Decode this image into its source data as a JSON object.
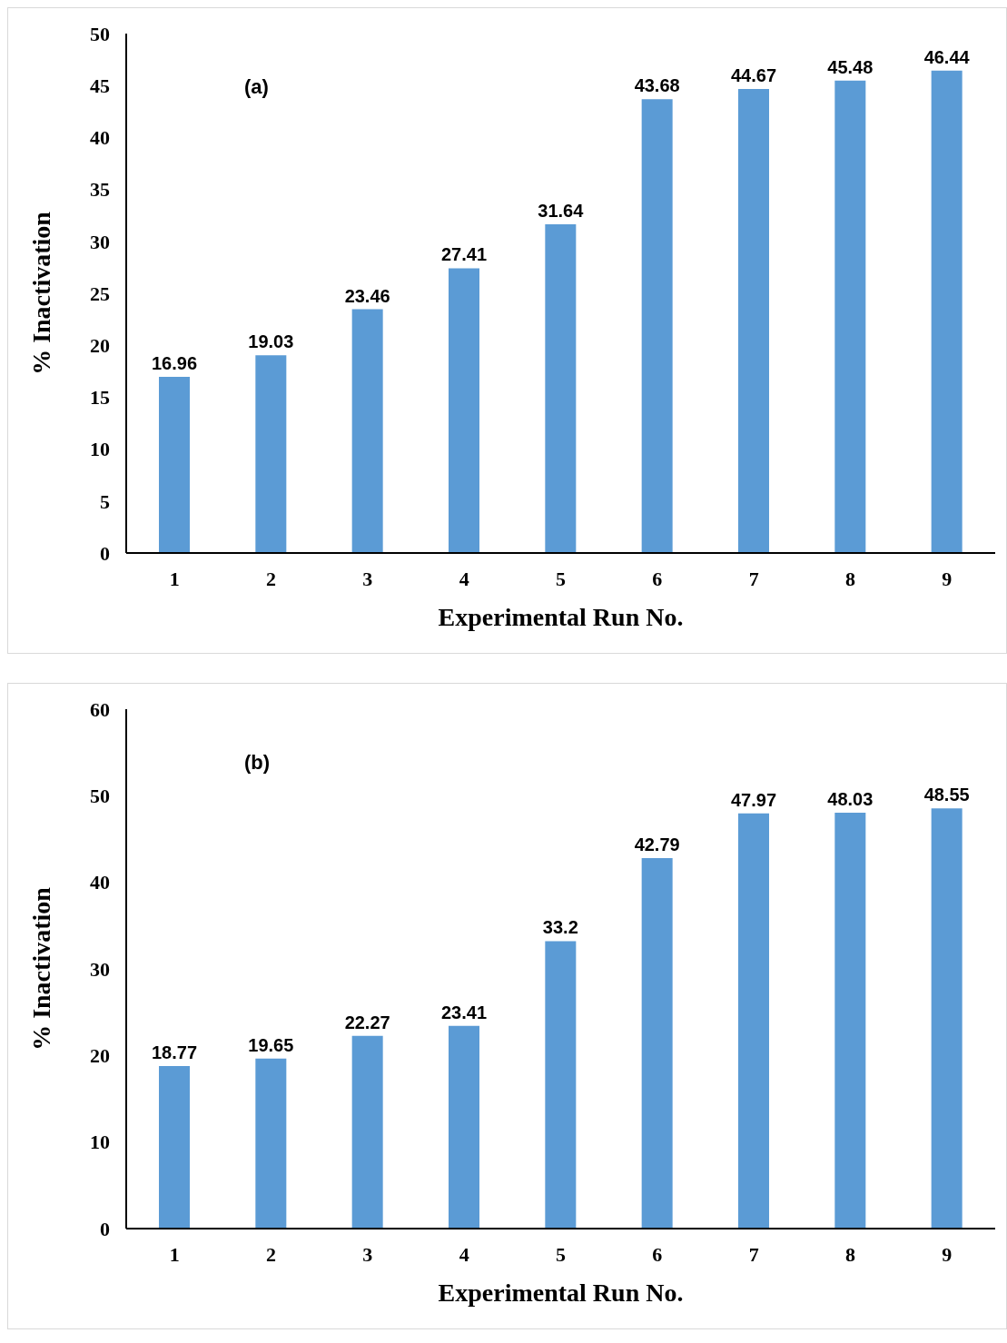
{
  "chart_data": [
    {
      "type": "bar",
      "annotations": [
        "(a)"
      ],
      "xlabel": "Experimental Run No.",
      "ylabel": "% Inactivation",
      "categories": [
        "1",
        "2",
        "3",
        "4",
        "5",
        "6",
        "7",
        "8",
        "9"
      ],
      "values": [
        16.96,
        19.03,
        23.46,
        27.41,
        31.64,
        43.68,
        44.67,
        45.48,
        46.44
      ],
      "color": "#5b9bd5",
      "ylim": [
        0,
        50
      ],
      "yticks": [
        0,
        5,
        10,
        15,
        20,
        25,
        30,
        35,
        40,
        45,
        50
      ],
      "grid": false,
      "legend": false,
      "data_labels": true
    },
    {
      "type": "bar",
      "annotations": [
        "(b)"
      ],
      "xlabel": "Experimental Run No.",
      "ylabel": "% Inactivation",
      "categories": [
        "1",
        "2",
        "3",
        "4",
        "5",
        "6",
        "7",
        "8",
        "9"
      ],
      "values": [
        18.77,
        19.65,
        22.27,
        23.41,
        33.2,
        42.79,
        47.97,
        48.03,
        48.55
      ],
      "color": "#5b9bd5",
      "ylim": [
        0,
        60
      ],
      "yticks": [
        0,
        10,
        20,
        30,
        40,
        50,
        60
      ],
      "grid": false,
      "legend": false,
      "data_labels": true
    }
  ]
}
